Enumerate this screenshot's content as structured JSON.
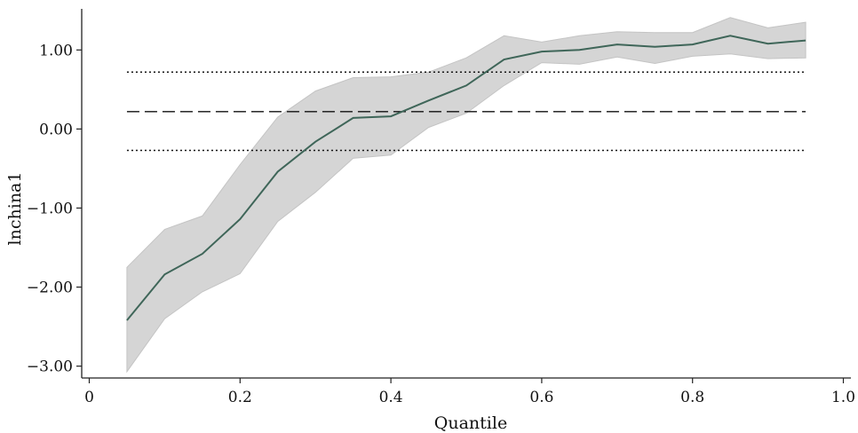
{
  "chart_data": {
    "type": "line",
    "title": "",
    "xlabel": "Quantile",
    "ylabel": "lnchina1",
    "xlim": [
      -0.01,
      1.01
    ],
    "ylim": [
      -3.15,
      1.52
    ],
    "x_ticks": [
      0,
      0.2,
      0.4,
      0.6,
      0.8,
      1.0
    ],
    "x_tick_labels": [
      "0",
      "0.2",
      "0.4",
      "0.6",
      "0.8",
      "1.0"
    ],
    "y_ticks": [
      1,
      0,
      -1,
      -2,
      -3
    ],
    "y_tick_labels": [
      "1.00",
      "0.00",
      "−1.00",
      "−2.00",
      "−3.00"
    ],
    "grid": false,
    "series": [
      {
        "kind": "quantile-estimate",
        "color": "#3f6659",
        "x": [
          0.05,
          0.1,
          0.15,
          0.2,
          0.25,
          0.3,
          0.35,
          0.4,
          0.45,
          0.5,
          0.55,
          0.6,
          0.65,
          0.7,
          0.75,
          0.8,
          0.85,
          0.9,
          0.95
        ],
        "y": [
          -2.42,
          -1.84,
          -1.58,
          -1.14,
          -0.54,
          -0.16,
          0.14,
          0.16,
          0.36,
          0.55,
          0.88,
          0.98,
          1.0,
          1.07,
          1.04,
          1.07,
          1.18,
          1.08,
          1.12
        ]
      },
      {
        "kind": "confidence-band",
        "color": "#d3d3d3",
        "x": [
          0.05,
          0.1,
          0.15,
          0.2,
          0.25,
          0.3,
          0.35,
          0.4,
          0.45,
          0.5,
          0.55,
          0.6,
          0.65,
          0.7,
          0.75,
          0.8,
          0.85,
          0.9,
          0.95
        ],
        "upper": [
          -1.75,
          -1.27,
          -1.1,
          -0.45,
          0.15,
          0.48,
          0.65,
          0.66,
          0.72,
          0.9,
          1.18,
          1.1,
          1.18,
          1.23,
          1.22,
          1.22,
          1.41,
          1.28,
          1.35
        ],
        "lower": [
          -3.07,
          -2.4,
          -2.06,
          -1.83,
          -1.17,
          -0.8,
          -0.37,
          -0.33,
          0.02,
          0.2,
          0.55,
          0.84,
          0.82,
          0.91,
          0.83,
          0.92,
          0.95,
          0.89,
          0.9
        ]
      },
      {
        "kind": "ols-estimate",
        "style": "dashed",
        "color": "#111111",
        "x": [
          0.05,
          0.95
        ],
        "y": [
          0.22,
          0.22
        ]
      },
      {
        "kind": "ols-upper-bound",
        "style": "dotted",
        "color": "#111111",
        "x": [
          0.05,
          0.95
        ],
        "y": [
          0.72,
          0.72
        ]
      },
      {
        "kind": "ols-lower-bound",
        "style": "dotted",
        "color": "#111111",
        "x": [
          0.05,
          0.95
        ],
        "y": [
          -0.27,
          -0.27
        ]
      }
    ]
  }
}
